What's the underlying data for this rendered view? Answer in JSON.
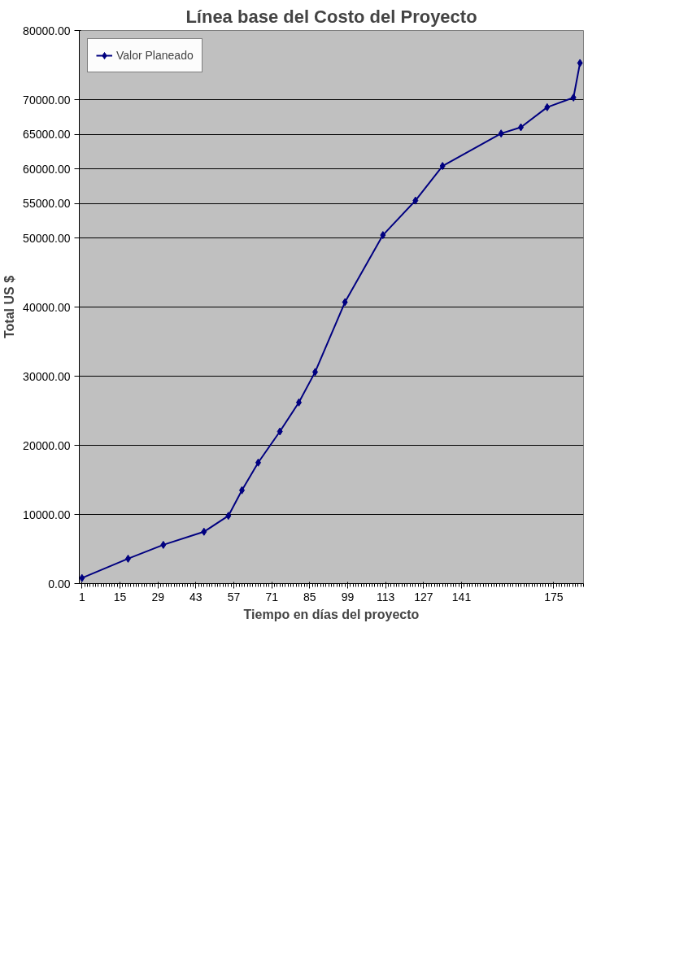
{
  "chart_data": {
    "type": "line",
    "title": "Línea base del Costo del Proyecto",
    "xlabel": "Tiempo en días del proyecto",
    "ylabel": "Total US $",
    "x": [
      1,
      18,
      31,
      46,
      55,
      60,
      66,
      74,
      81,
      87,
      98,
      112,
      124,
      134,
      155.6,
      162.9,
      172.6,
      182.3,
      184.7
    ],
    "series": [
      {
        "name": "Valor Planeado",
        "color": "#000080",
        "values": [
          800,
          3600,
          5600,
          7500,
          9800,
          13500,
          17500,
          22000,
          26200,
          30600,
          40700,
          50400,
          55400,
          60400,
          65100,
          66000,
          68900,
          70300,
          75300
        ]
      }
    ],
    "xlim": [
      0,
      186
    ],
    "xticks": [
      1,
      15,
      29,
      43,
      57,
      71,
      85,
      99,
      113,
      127,
      141,
      175
    ],
    "ylim": [
      0,
      80000
    ],
    "yticks": [
      {
        "value": 0,
        "label": "0.00"
      },
      {
        "value": 10000,
        "label": "10000.00"
      },
      {
        "value": 20000,
        "label": "20000.00"
      },
      {
        "value": 30000,
        "label": "30000.00"
      },
      {
        "value": 40000,
        "label": "40000.00"
      },
      {
        "value": 50000,
        "label": "50000.00"
      },
      {
        "value": 55000,
        "label": "55000.00"
      },
      {
        "value": 60000,
        "label": "60000.00"
      },
      {
        "value": 65000,
        "label": "65000.00"
      },
      {
        "value": 70000,
        "label": "70000.00"
      },
      {
        "value": 80000,
        "label": "80000.00"
      }
    ],
    "grid": "y",
    "legend": "top left",
    "marker": "diamond",
    "line_style": "solid"
  }
}
